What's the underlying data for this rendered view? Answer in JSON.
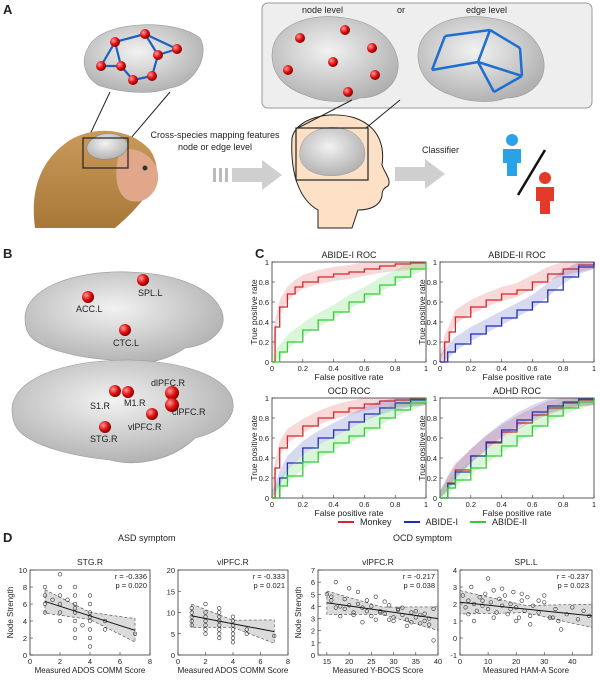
{
  "panel_a": {
    "letter": "A",
    "node_level": "node level",
    "or": "or",
    "edge_level": "edge level",
    "mapping_text_line1": "Cross-species mapping features",
    "mapping_text_line2": "node or edge level",
    "classifier": "Classifier"
  },
  "panel_b": {
    "letter": "B",
    "regions_top": [
      "ACC.L",
      "SPL.L",
      "CTC.L"
    ],
    "regions_bottom": [
      "dlPFC.R",
      "S1.R",
      "M1.R",
      "clPFC.R",
      "vlPFC.R",
      "STG.R"
    ]
  },
  "panel_c": {
    "letter": "C",
    "legend": [
      "Monkey",
      "ABIDE-I",
      "ABIDE-II"
    ],
    "colors": {
      "monkey": "#d62728",
      "abide1": "#1f2fb4",
      "abide2": "#33cc33"
    }
  },
  "panel_d": {
    "letter": "D",
    "asd_title": "ASD symptom",
    "ocd_title": "OCD symptom"
  },
  "chart_data": [
    {
      "type": "line",
      "title": "ABIDE-I ROC",
      "xlabel": "False positive rate",
      "ylabel": "True positive rate",
      "xlim": [
        0,
        1
      ],
      "ylim": [
        0,
        1
      ],
      "xticks": [
        0,
        0.2,
        0.4,
        0.6,
        0.8,
        1
      ],
      "yticks": [
        0,
        0.2,
        0.4,
        0.6,
        0.8,
        1
      ],
      "series": [
        {
          "name": "Monkey",
          "x": [
            0,
            0.02,
            0.05,
            0.1,
            0.15,
            0.2,
            0.3,
            0.4,
            0.5,
            0.6,
            0.7,
            0.8,
            0.9,
            1
          ],
          "y": [
            0,
            0.35,
            0.55,
            0.68,
            0.75,
            0.8,
            0.85,
            0.88,
            0.9,
            0.93,
            0.96,
            0.98,
            0.99,
            1
          ]
        },
        {
          "name": "ABIDE-II",
          "x": [
            0,
            0.05,
            0.1,
            0.2,
            0.3,
            0.4,
            0.5,
            0.6,
            0.7,
            0.8,
            0.9,
            1
          ],
          "y": [
            0,
            0.1,
            0.2,
            0.32,
            0.42,
            0.5,
            0.6,
            0.68,
            0.77,
            0.85,
            0.93,
            1
          ]
        }
      ]
    },
    {
      "type": "line",
      "title": "ABIDE-II ROC",
      "xlabel": "False positive rate",
      "ylabel": "True positive rate",
      "xlim": [
        0,
        1
      ],
      "ylim": [
        0,
        1
      ],
      "xticks": [
        0,
        0.2,
        0.4,
        0.6,
        0.8,
        1
      ],
      "yticks": [
        0,
        0.2,
        0.4,
        0.6,
        0.8,
        1
      ],
      "series": [
        {
          "name": "Monkey",
          "x": [
            0,
            0.03,
            0.06,
            0.1,
            0.2,
            0.3,
            0.4,
            0.5,
            0.6,
            0.7,
            0.8,
            0.9,
            1
          ],
          "y": [
            0,
            0.2,
            0.3,
            0.45,
            0.55,
            0.62,
            0.68,
            0.72,
            0.8,
            0.88,
            0.93,
            0.97,
            1
          ]
        },
        {
          "name": "ABIDE-I",
          "x": [
            0,
            0.05,
            0.1,
            0.2,
            0.3,
            0.4,
            0.5,
            0.6,
            0.7,
            0.8,
            0.9,
            1
          ],
          "y": [
            0,
            0.1,
            0.18,
            0.28,
            0.36,
            0.44,
            0.52,
            0.6,
            0.72,
            0.85,
            0.95,
            1
          ]
        }
      ]
    },
    {
      "type": "line",
      "title": "OCD ROC",
      "xlabel": "False positive rate",
      "ylabel": "True positive rate",
      "xlim": [
        0,
        1
      ],
      "ylim": [
        0,
        1
      ],
      "xticks": [
        0,
        0.2,
        0.4,
        0.6,
        0.8,
        1
      ],
      "yticks": [
        0,
        0.2,
        0.4,
        0.6,
        0.8,
        1
      ],
      "series": [
        {
          "name": "Monkey",
          "x": [
            0,
            0.02,
            0.05,
            0.1,
            0.2,
            0.3,
            0.4,
            0.5,
            0.6,
            0.7,
            0.8,
            0.9,
            1
          ],
          "y": [
            0,
            0.3,
            0.5,
            0.62,
            0.72,
            0.8,
            0.86,
            0.9,
            0.94,
            0.97,
            0.98,
            0.99,
            1
          ]
        },
        {
          "name": "ABIDE-I",
          "x": [
            0,
            0.05,
            0.1,
            0.2,
            0.3,
            0.4,
            0.5,
            0.6,
            0.7,
            0.8,
            0.9,
            1
          ],
          "y": [
            0,
            0.2,
            0.35,
            0.5,
            0.6,
            0.68,
            0.76,
            0.84,
            0.9,
            0.95,
            0.98,
            1
          ]
        },
        {
          "name": "ABIDE-II",
          "x": [
            0,
            0.05,
            0.1,
            0.2,
            0.3,
            0.4,
            0.5,
            0.6,
            0.7,
            0.8,
            0.9,
            1
          ],
          "y": [
            0,
            0.12,
            0.22,
            0.36,
            0.46,
            0.55,
            0.62,
            0.7,
            0.8,
            0.88,
            0.95,
            1
          ]
        }
      ]
    },
    {
      "type": "line",
      "title": "ADHD ROC",
      "xlabel": "False positive rate",
      "ylabel": "True positive rate",
      "xlim": [
        0,
        1
      ],
      "ylim": [
        0,
        1
      ],
      "xticks": [
        0,
        0.2,
        0.4,
        0.6,
        0.8,
        1
      ],
      "yticks": [
        0,
        0.2,
        0.4,
        0.6,
        0.8,
        1
      ],
      "series": [
        {
          "name": "Monkey",
          "x": [
            0,
            0.05,
            0.1,
            0.2,
            0.3,
            0.4,
            0.5,
            0.6,
            0.7,
            0.8,
            0.9,
            1
          ],
          "y": [
            0,
            0.15,
            0.28,
            0.42,
            0.55,
            0.66,
            0.75,
            0.83,
            0.9,
            0.95,
            0.98,
            1
          ]
        },
        {
          "name": "ABIDE-I",
          "x": [
            0,
            0.05,
            0.1,
            0.2,
            0.3,
            0.4,
            0.5,
            0.6,
            0.7,
            0.8,
            0.9,
            1
          ],
          "y": [
            0,
            0.14,
            0.26,
            0.42,
            0.56,
            0.68,
            0.78,
            0.86,
            0.92,
            0.96,
            0.99,
            1
          ]
        },
        {
          "name": "ABIDE-II",
          "x": [
            0,
            0.05,
            0.1,
            0.2,
            0.3,
            0.4,
            0.5,
            0.6,
            0.7,
            0.8,
            0.9,
            1
          ],
          "y": [
            0,
            0.1,
            0.18,
            0.3,
            0.42,
            0.52,
            0.62,
            0.72,
            0.82,
            0.9,
            0.96,
            1
          ]
        }
      ]
    },
    {
      "type": "scatter",
      "title": "STG.R",
      "xlabel": "Measured ADOS COMM Score",
      "ylabel": "Node Strength",
      "xlim": [
        0,
        8
      ],
      "ylim": [
        0,
        10
      ],
      "xticks": [
        0,
        2,
        4,
        6,
        8
      ],
      "yticks": [
        0,
        2,
        4,
        6,
        8,
        10
      ],
      "annotation": [
        "r = -0.336",
        "p = 0.020"
      ],
      "fit": {
        "x": [
          1,
          7
        ],
        "y": [
          6.3,
          2.9
        ]
      },
      "points": {
        "x": [
          1,
          1,
          1,
          1.5,
          2,
          2,
          2,
          2,
          2,
          3,
          3,
          3,
          3,
          3,
          3,
          3,
          4,
          4,
          4,
          4,
          4,
          4,
          4,
          5,
          5,
          7,
          2,
          3,
          1,
          4,
          2.5,
          3.5
        ],
        "y": [
          7,
          6,
          5,
          6.5,
          8,
          7,
          6,
          5,
          4,
          8,
          7,
          6,
          5,
          4,
          3,
          2,
          7,
          6,
          5,
          4,
          3,
          2,
          1,
          4,
          3,
          2.5,
          9.5,
          5.5,
          8,
          4.5,
          6.5,
          3.5
        ]
      }
    },
    {
      "type": "scatter",
      "title": "vlPFC.R",
      "xlabel": "Measured ADOS COMM Score",
      "ylabel": "",
      "xlim": [
        0,
        8
      ],
      "ylim": [
        0,
        20
      ],
      "xticks": [
        0,
        2,
        4,
        6,
        8
      ],
      "yticks": [
        0,
        5,
        10,
        15,
        20
      ],
      "annotation": [
        "r = -0.333",
        "p = 0.021"
      ],
      "fit": {
        "x": [
          1,
          7
        ],
        "y": [
          9.2,
          5.5
        ]
      },
      "points": {
        "x": [
          1,
          1,
          1,
          1,
          2,
          2,
          2,
          2,
          2,
          3,
          3,
          3,
          3,
          3,
          3,
          4,
          4,
          4,
          4,
          4,
          4,
          5,
          5,
          7,
          2,
          3,
          1,
          4,
          2,
          3
        ],
        "y": [
          11,
          9,
          8,
          7,
          10,
          9,
          8,
          7,
          6,
          10,
          9,
          8,
          7,
          6,
          5,
          9,
          8,
          7,
          6,
          5,
          4,
          6,
          5,
          4.5,
          12,
          4,
          10,
          3,
          5,
          11
        ]
      }
    },
    {
      "type": "scatter",
      "title": "vlPFC.R",
      "xlabel": "Measured Y-BOCS Score",
      "ylabel": "Node Strength",
      "xlim": [
        13,
        40
      ],
      "ylim": [
        0,
        7
      ],
      "xticks": [
        15,
        20,
        25,
        30,
        35,
        40
      ],
      "yticks": [
        0,
        1,
        2,
        3,
        4,
        5,
        6,
        7
      ],
      "annotation": [
        "r = -0.217",
        "p = 0.038"
      ],
      "fit": {
        "x": [
          15,
          40
        ],
        "y": [
          4.3,
          3.0
        ]
      },
      "points": {
        "x": [
          15,
          16,
          17,
          18,
          19,
          20,
          21,
          22,
          23,
          24,
          25,
          26,
          27,
          28,
          29,
          30,
          31,
          32,
          33,
          34,
          35,
          36,
          37,
          38,
          39,
          16,
          18,
          20,
          22,
          24,
          26,
          28,
          30,
          32,
          34,
          36,
          38,
          17,
          19,
          21,
          23,
          25,
          27,
          29,
          31,
          33,
          35,
          37,
          39
        ],
        "y": [
          5,
          4.5,
          6,
          4,
          3.8,
          5.5,
          3.5,
          4.2,
          3.9,
          4.5,
          3.2,
          4.8,
          3.6,
          3.4,
          4.1,
          2.8,
          3.7,
          3.3,
          2.9,
          3.5,
          3.1,
          2.6,
          3.4,
          2.5,
          3.8,
          4.8,
          3.2,
          4.1,
          5.2,
          3.6,
          2.9,
          4.4,
          3.1,
          3.9,
          2.7,
          3.3,
          3,
          3.9,
          4.6,
          3.3,
          2.7,
          4,
          3.5,
          2.9,
          3.8,
          2.4,
          3.6,
          2.8,
          1.2
        ]
      }
    },
    {
      "type": "scatter",
      "title": "SPL.L",
      "xlabel": "Measured HAM-A Score",
      "ylabel": "",
      "xlim": [
        0,
        47
      ],
      "ylim": [
        -1,
        4
      ],
      "xticks": [
        0,
        10,
        20,
        30,
        40
      ],
      "yticks": [
        -1,
        0,
        1,
        2,
        3,
        4
      ],
      "annotation": [
        "r = -0.237",
        "p = 0.023"
      ],
      "fit": {
        "x": [
          0,
          47
        ],
        "y": [
          2.1,
          1.3
        ]
      },
      "points": {
        "x": [
          1,
          2,
          3,
          4,
          5,
          6,
          7,
          8,
          9,
          10,
          11,
          12,
          13,
          14,
          15,
          16,
          17,
          18,
          19,
          20,
          21,
          22,
          23,
          24,
          25,
          26,
          28,
          30,
          32,
          34,
          36,
          38,
          40,
          42,
          44,
          46,
          5,
          10,
          15,
          20,
          25,
          30,
          35,
          8,
          12,
          18,
          22,
          28,
          33,
          3
        ],
        "y": [
          2.5,
          1.8,
          2.2,
          3,
          2,
          1.6,
          2.4,
          1.9,
          2.6,
          1.7,
          2.1,
          2.8,
          1.5,
          2.3,
          1.9,
          2.5,
          1.4,
          2,
          2.7,
          1.8,
          1.2,
          2.2,
          1.6,
          2.4,
          0.8,
          1.9,
          1.5,
          2.1,
          1.2,
          1.7,
          0.5,
          1.4,
          1.8,
          1.1,
          1.6,
          1.3,
          1,
          3.5,
          2.9,
          1,
          1.3,
          2.5,
          1,
          2.2,
          1.2,
          1.7,
          2.6,
          2.2,
          1.2,
          1.4
        ]
      }
    }
  ]
}
